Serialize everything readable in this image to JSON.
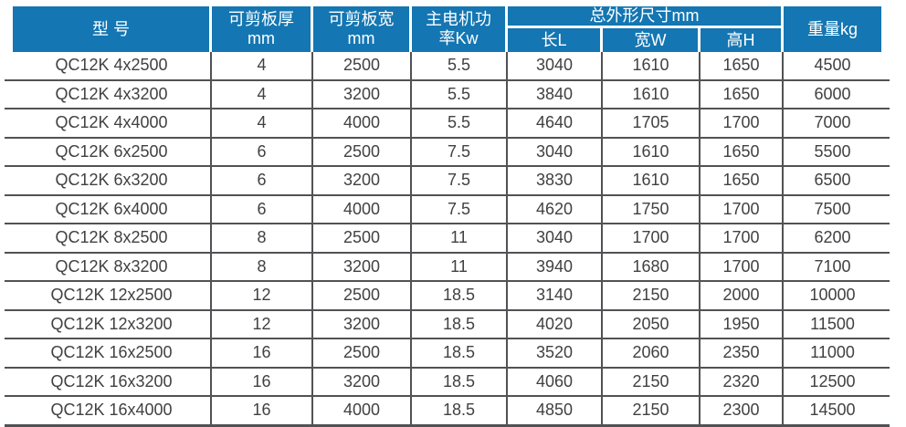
{
  "title": "QC12K shearing machine specification table",
  "colors": {
    "header_bg": "#1476b2",
    "header_text": "#ffffff",
    "line": "#515254",
    "body_text": "#414042"
  },
  "header": {
    "model": "型 号",
    "thickness": [
      "可剪板厚",
      "mm"
    ],
    "cut_width": [
      "可剪板宽",
      "mm"
    ],
    "power": [
      "主电机功",
      "率Kw"
    ],
    "dims_group": "总外形尺寸mm",
    "dims_children": [
      "长L",
      "宽W",
      "高H"
    ],
    "weight": "重量kg"
  },
  "rows": [
    [
      "QC12K 4x2500",
      "4",
      "2500",
      "5.5",
      "3040",
      "1610",
      "1650",
      "4500"
    ],
    [
      "QC12K 4x3200",
      "4",
      "3200",
      "5.5",
      "3840",
      "1610",
      "1650",
      "6000"
    ],
    [
      "QC12K 4x4000",
      "4",
      "4000",
      "5.5",
      "4640",
      "1705",
      "1700",
      "7000"
    ],
    [
      "QC12K 6x2500",
      "6",
      "2500",
      "7.5",
      "3040",
      "1610",
      "1650",
      "5500"
    ],
    [
      "QC12K 6x3200",
      "6",
      "3200",
      "7.5",
      "3830",
      "1610",
      "1650",
      "6500"
    ],
    [
      "QC12K 6x4000",
      "6",
      "4000",
      "7.5",
      "4620",
      "1750",
      "1700",
      "7500"
    ],
    [
      "QC12K 8x2500",
      "8",
      "2500",
      "11",
      "3040",
      "1700",
      "1700",
      "6200"
    ],
    [
      "QC12K 8x3200",
      "8",
      "3200",
      "11",
      "3940",
      "1680",
      "1700",
      "7100"
    ],
    [
      "QC12K 12x2500",
      "12",
      "2500",
      "18.5",
      "3140",
      "2150",
      "2000",
      "10000"
    ],
    [
      "QC12K 12x3200",
      "12",
      "3200",
      "18.5",
      "4020",
      "2050",
      "1950",
      "11500"
    ],
    [
      "QC12K 16x2500",
      "16",
      "2500",
      "18.5",
      "3520",
      "2060",
      "2350",
      "11000"
    ],
    [
      "QC12K 16x3200",
      "16",
      "3200",
      "18.5",
      "4060",
      "2150",
      "2320",
      "12500"
    ],
    [
      "QC12K 16x4000",
      "16",
      "4000",
      "18.5",
      "4850",
      "2150",
      "2300",
      "14500"
    ]
  ]
}
